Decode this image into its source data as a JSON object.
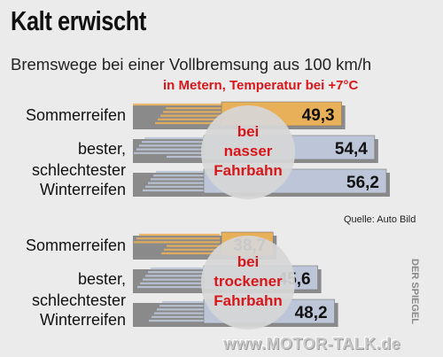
{
  "header": {
    "title": "Kalt erwischt",
    "subtitle": "Bremswege bei einer Vollbremsung aus 100 km/h",
    "unit_note": "in Metern, Temperatur bei +7°C",
    "source": "Quelle: Auto Bild",
    "credit": "DER SPIEGEL",
    "watermark": "www.MOTOR-TALK.de"
  },
  "colors": {
    "summer": "#e9b05a",
    "winter": "#bcc6d8",
    "highlight_text": "#d8161a"
  },
  "chart_data": {
    "type": "bar",
    "orientation": "horizontal",
    "groups": [
      {
        "label": [
          "bei",
          "nasser",
          "Fahrbahn"
        ],
        "bars": [
          {
            "category": [
              "Sommerreifen"
            ],
            "value": 49.3,
            "value_label": "49,3",
            "color": "summer"
          },
          {
            "category": [
              "bester,"
            ],
            "value": 54.4,
            "value_label": "54,4",
            "color": "winter"
          },
          {
            "category": [
              "schlechtester",
              "Winterreifen"
            ],
            "value": 56.2,
            "value_label": "56,2",
            "color": "winter"
          }
        ]
      },
      {
        "label": [
          "bei",
          "trockener",
          "Fahrbahn"
        ],
        "bars": [
          {
            "category": [
              "Sommerreifen"
            ],
            "value": 38.7,
            "value_label": "38,7",
            "color": "summer"
          },
          {
            "category": [
              "bester,"
            ],
            "value": 45.6,
            "value_label": "45,6",
            "color": "winter"
          },
          {
            "category": [
              "schlechtester",
              "Winterreifen"
            ],
            "value": 48.2,
            "value_label": "48,2",
            "color": "winter"
          }
        ]
      }
    ]
  }
}
